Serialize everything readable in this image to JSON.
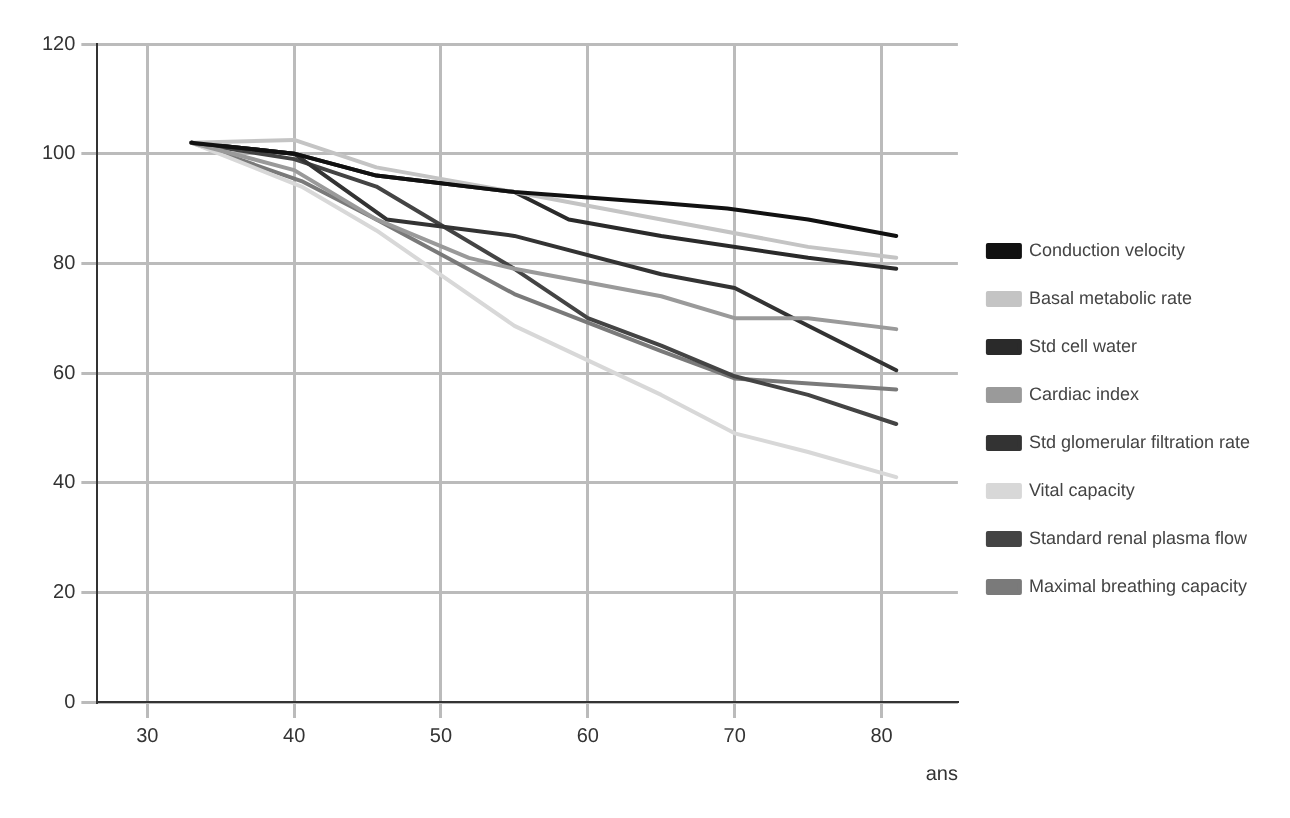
{
  "chart_data": {
    "type": "line",
    "xlabel": "ans",
    "xlim": [
      26.6,
      85.2
    ],
    "xticks": [
      30,
      40,
      50,
      60,
      70,
      80
    ],
    "ylim": [
      0,
      120
    ],
    "yticks": [
      0,
      20,
      40,
      60,
      80,
      100,
      120
    ],
    "grid": true,
    "legend": "right",
    "marker": "none",
    "line_style": "solid",
    "series": [
      {
        "name": "Conduction velocity",
        "color": "#111111",
        "x": [
          33,
          40,
          45.6,
          55,
          65,
          69.5,
          75,
          81
        ],
        "values": [
          102,
          100,
          96,
          93,
          91,
          90,
          88,
          85
        ]
      },
      {
        "name": "Basal metabolic rate",
        "color": "#c4c4c4",
        "x": [
          33,
          40,
          45.6,
          55,
          65,
          75,
          81
        ],
        "values": [
          102,
          102.5,
          97.5,
          93,
          88,
          83,
          81
        ]
      },
      {
        "name": "Std cell water",
        "color": "#2a2a2a",
        "x": [
          33,
          40,
          45.6,
          55,
          58.7,
          65,
          75,
          81
        ],
        "values": [
          102,
          100,
          96,
          93,
          88,
          85,
          81,
          79
        ]
      },
      {
        "name": "Cardiac index",
        "color": "#9a9a9a",
        "x": [
          33,
          40,
          45.6,
          51.9,
          55,
          65,
          70,
          75,
          81
        ],
        "values": [
          102,
          97,
          88,
          81,
          79,
          74,
          70,
          70,
          68
        ]
      },
      {
        "name": "Std glomerular filtration rate",
        "color": "#333333",
        "x": [
          33,
          40,
          46.3,
          55,
          65,
          70,
          75,
          81
        ],
        "values": [
          102,
          100,
          88,
          85,
          78,
          75.5,
          68.6,
          60.5
        ]
      },
      {
        "name": "Vital capacity",
        "color": "#d8d8d8",
        "x": [
          33,
          40.5,
          45.6,
          55,
          65,
          70,
          75,
          81
        ],
        "values": [
          102,
          94,
          86,
          68.6,
          56,
          49,
          45.6,
          41
        ]
      },
      {
        "name": "Standard renal plasma flow",
        "color": "#444444",
        "x": [
          33,
          40,
          45.6,
          55,
          60,
          65,
          70,
          75,
          81
        ],
        "values": [
          102,
          99,
          94,
          79,
          70,
          65,
          59.4,
          56,
          50.7
        ]
      },
      {
        "name": "Maximal breathing capacity",
        "color": "#7a7a7a",
        "x": [
          33,
          40.5,
          45.6,
          55,
          65,
          70,
          81
        ],
        "values": [
          102,
          95,
          88,
          74.4,
          64,
          59,
          57
        ]
      }
    ]
  }
}
